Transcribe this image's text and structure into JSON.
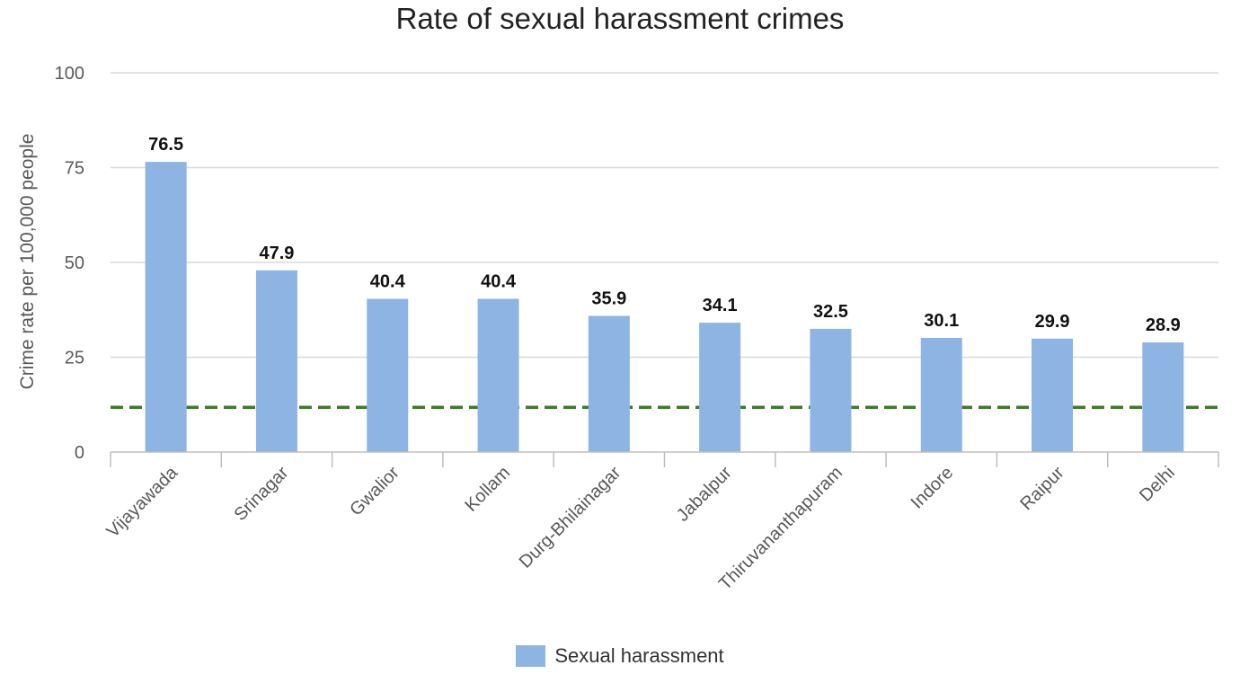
{
  "chart_data": {
    "type": "bar",
    "title": "Rate of sexual harassment crimes",
    "ylabel": "Crime rate per 100,000 people",
    "xlabel": "",
    "ylim": [
      0,
      100
    ],
    "yticks": [
      0,
      25,
      50,
      75,
      100
    ],
    "grid": true,
    "legend_position": "bottom",
    "categories": [
      "Vijayawada",
      "Srinagar",
      "Gwalior",
      "Kollam",
      "Durg-Bhilainagar",
      "Jabalpur",
      "Thiruvananthapuram",
      "Indore",
      "Raipur",
      "Delhi"
    ],
    "series": [
      {
        "name": "Sexual harassment",
        "values": [
          76.5,
          47.9,
          40.4,
          40.4,
          35.9,
          34.1,
          32.5,
          30.1,
          29.9,
          28.9
        ],
        "data_labels": [
          "76.5",
          "47.9",
          "40.4",
          "40.4",
          "35.9",
          "34.1",
          "32.5",
          "30.1",
          "29.9",
          "28.9"
        ]
      }
    ],
    "reference_line": {
      "value": 11.8,
      "style": "dashed"
    },
    "colors": {
      "bar": "#8db4e2",
      "reference_line": "#3a7d22",
      "grid": "#d9d9d9",
      "axis": "#bfbfbf"
    }
  }
}
